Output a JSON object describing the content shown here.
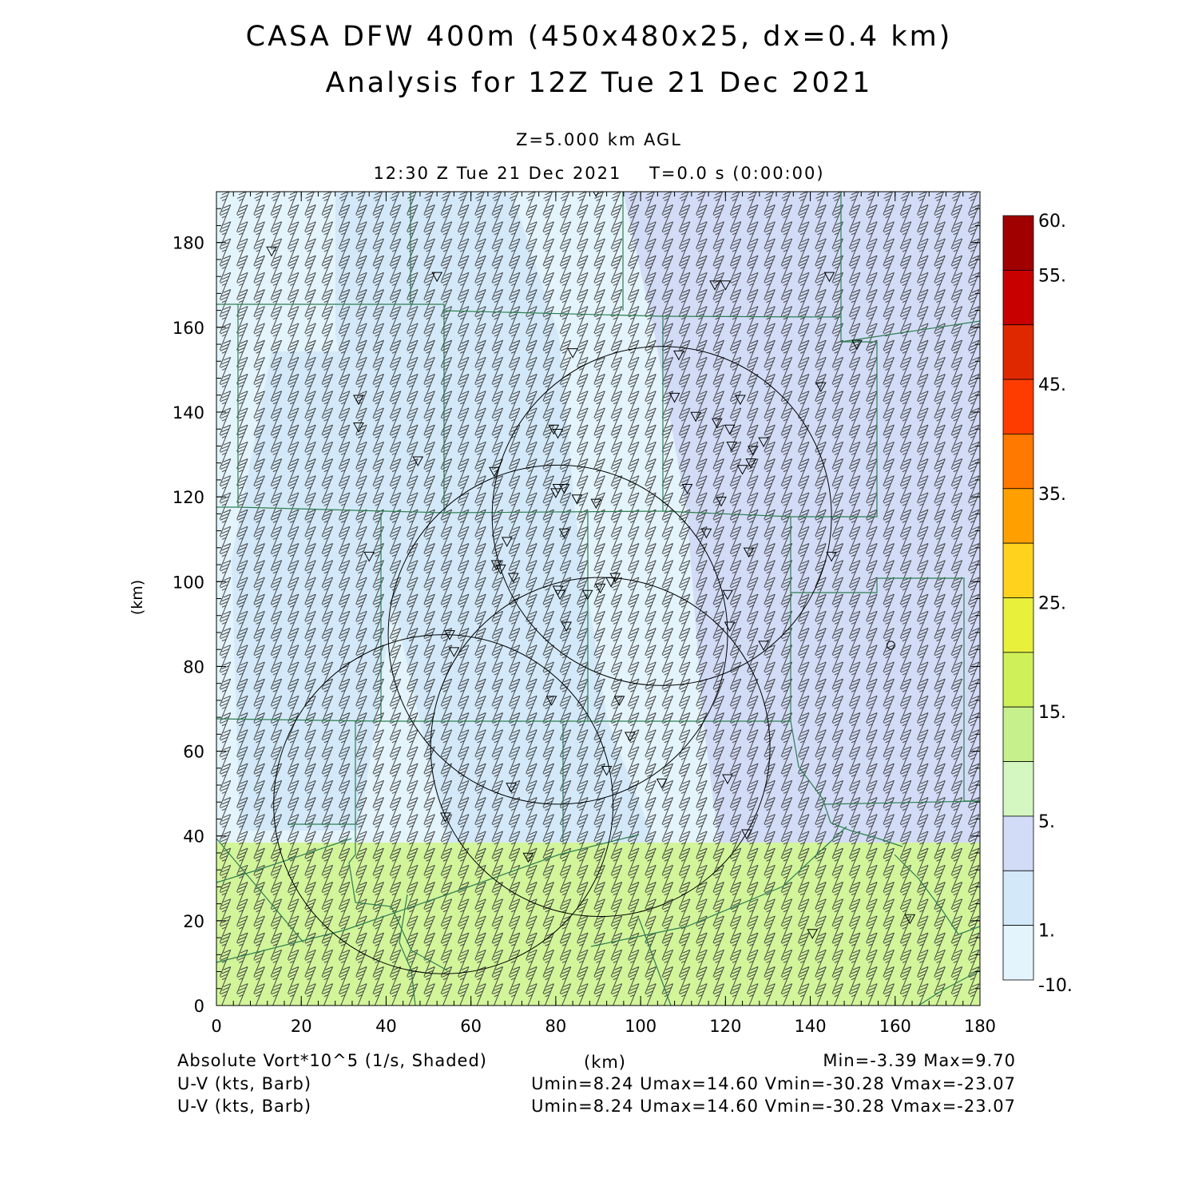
{
  "header": {
    "title_line1": "CASA DFW 400m (450x480x25, dx=0.4 km)",
    "title_line2": "Analysis for 12Z Tue 21 Dec 2021",
    "level": "Z=5.000 km AGL",
    "valid_time": "12:30 Z Tue 21 Dec 2021    T=0.0 s (0:00:00)"
  },
  "axes": {
    "x_label": "(km)",
    "y_label": "(km)",
    "x_range": [
      0,
      180
    ],
    "y_range": [
      0,
      192
    ],
    "x_ticks": [
      "0",
      "20",
      "40",
      "60",
      "80",
      "100",
      "120",
      "140",
      "160",
      "180"
    ],
    "y_ticks": [
      "0",
      "20",
      "40",
      "60",
      "80",
      "100",
      "120",
      "140",
      "160",
      "180"
    ]
  },
  "colorbar": {
    "labels": [
      "60.",
      "55.",
      "45.",
      "35.",
      "25.",
      "15.",
      "5.",
      "1.",
      "-10."
    ],
    "colors": [
      "#a00000",
      "#c80000",
      "#e02800",
      "#ff3c00",
      "#ff7800",
      "#ffa000",
      "#ffd21e",
      "#e8f03c",
      "#d0f05a",
      "#c6f08c",
      "#d4f6c0",
      "#d2dcf7",
      "#d3e9f9",
      "#e4f4fc"
    ]
  },
  "field_colors": {
    "light_blue": "#e4f4fc",
    "blue": "#d3e9f9",
    "lavender": "#d2dcf7",
    "green": "#d2f59a"
  },
  "footer": {
    "shaded_label": "Absolute Vort*10^5 (1/s, Shaded)",
    "x_unit": "(km)",
    "minmax": "Min=-3.39 Max=9.70",
    "barb1_label": "U-V (kts, Barb)",
    "barb1_stats": "Umin=8.24 Umax=14.60 Vmin=-30.28 Vmax=-23.07",
    "barb2_label": "U-V (kts, Barb)",
    "barb2_stats": "Umin=8.24 Umax=14.60 Vmin=-30.28 Vmax=-23.07"
  },
  "radar_rings_km": [
    {
      "cx": 105,
      "cy": 115.5,
      "r": 40
    },
    {
      "cx": 80.5,
      "cy": 87.5,
      "r": 40
    },
    {
      "cx": 90.5,
      "cy": 61,
      "r": 40
    },
    {
      "cx": 53.5,
      "cy": 47.5,
      "r": 40
    }
  ],
  "stations_km": [
    [
      13,
      178
    ],
    [
      52,
      172
    ],
    [
      89.5,
      192
    ],
    [
      117.5,
      170
    ],
    [
      120,
      170
    ],
    [
      144.5,
      172
    ],
    [
      151,
      156
    ],
    [
      84,
      154
    ],
    [
      109,
      153.5
    ],
    [
      142.5,
      146
    ],
    [
      33.5,
      143
    ],
    [
      108,
      143.5
    ],
    [
      123.5,
      143
    ],
    [
      33.5,
      136.5
    ],
    [
      113,
      139
    ],
    [
      118,
      137.5
    ],
    [
      121,
      136
    ],
    [
      79.5,
      136
    ],
    [
      80.5,
      135
    ],
    [
      129,
      133
    ],
    [
      121.5,
      132
    ],
    [
      126.5,
      131
    ],
    [
      126,
      128
    ],
    [
      124,
      126.5
    ],
    [
      65.5,
      126
    ],
    [
      47.5,
      128.5
    ],
    [
      80.5,
      122
    ],
    [
      82,
      122
    ],
    [
      111,
      122
    ],
    [
      80,
      121
    ],
    [
      85,
      119.5
    ],
    [
      119,
      119
    ],
    [
      89.5,
      118.5
    ],
    [
      36,
      106
    ],
    [
      68.5,
      109.5
    ],
    [
      82,
      111.5
    ],
    [
      115.5,
      111.5
    ],
    [
      125.5,
      107
    ],
    [
      145,
      106
    ],
    [
      66,
      104
    ],
    [
      67,
      103
    ],
    [
      70,
      101
    ],
    [
      94,
      101
    ],
    [
      93,
      100
    ],
    [
      90.5,
      98.5
    ],
    [
      80.5,
      98
    ],
    [
      81,
      97
    ],
    [
      87.5,
      97
    ],
    [
      120.5,
      97
    ],
    [
      55,
      87.5
    ],
    [
      56,
      83.5
    ],
    [
      82.5,
      89.5
    ],
    [
      121,
      89.5
    ],
    [
      129,
      85
    ],
    [
      79,
      72
    ],
    [
      95,
      72
    ],
    [
      97.5,
      63.5
    ],
    [
      92,
      55.5
    ],
    [
      120.5,
      53.5
    ],
    [
      105,
      52.5
    ],
    [
      69.5,
      51.5
    ],
    [
      54,
      44.5
    ],
    [
      125,
      40.5
    ],
    [
      73.5,
      35
    ],
    [
      163.5,
      20.5
    ],
    [
      140.5,
      17
    ]
  ],
  "circle_marker_km": [
    159,
    85
  ]
}
